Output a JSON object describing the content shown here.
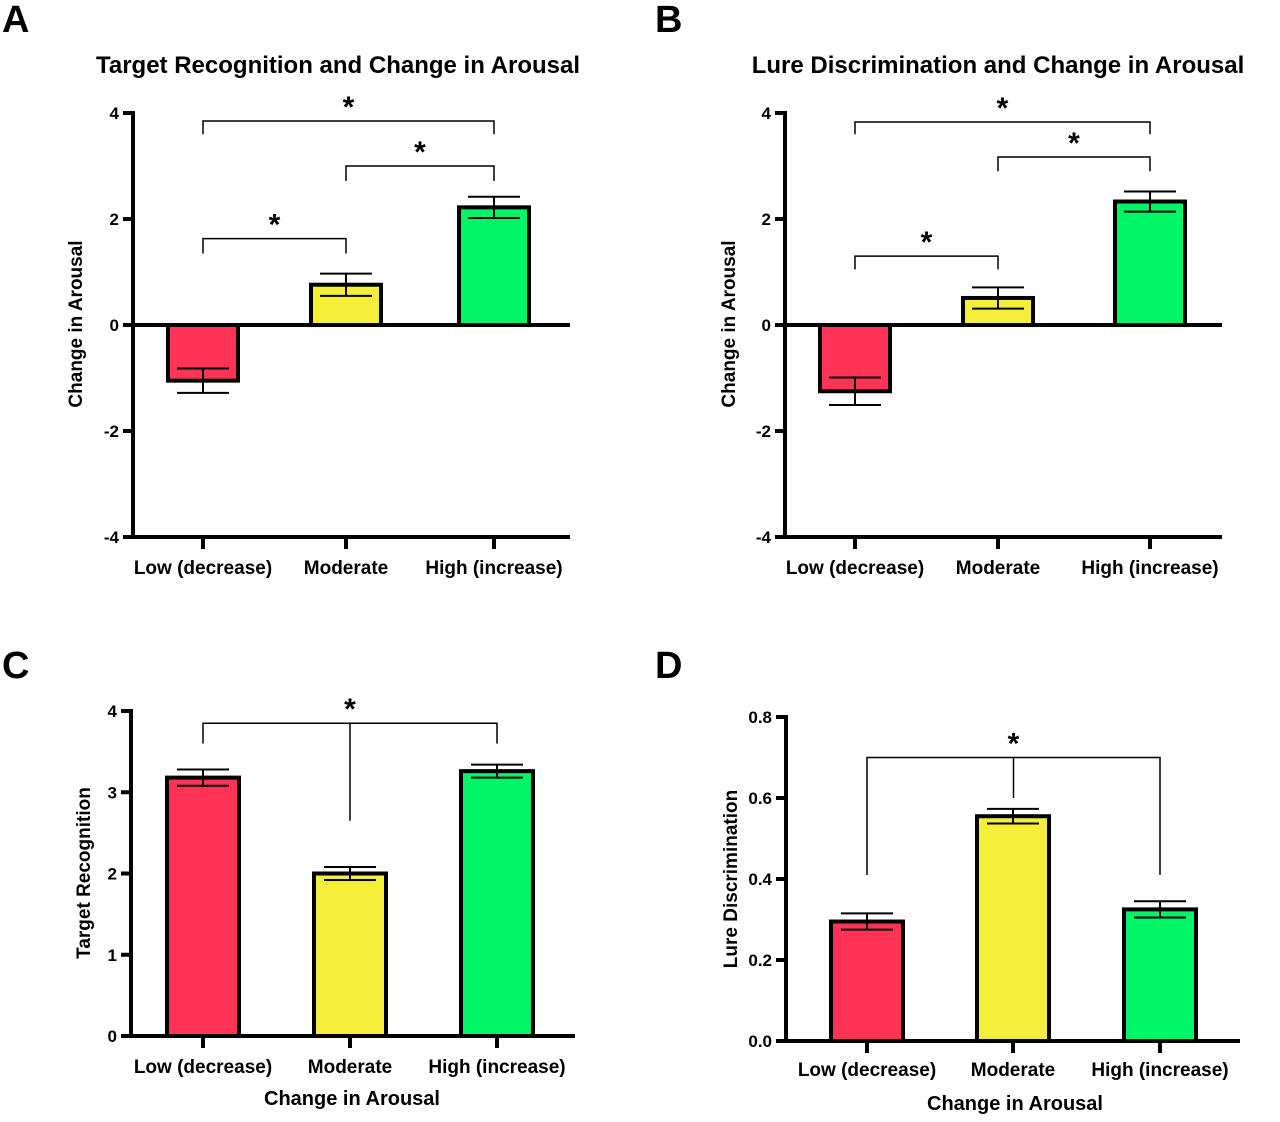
{
  "chart_data": [
    {
      "panel": "A",
      "type": "bar",
      "title": "Target Recognition and Change in Arousal",
      "xlabel": "",
      "ylabel": "Change in Arousal",
      "ylim": [
        -4,
        4
      ],
      "yticks": [
        "-4",
        "-2",
        "0",
        "2",
        "4"
      ],
      "categories": [
        "Low (decrease)",
        "Moderate",
        "High (increase)"
      ],
      "values": [
        -1.05,
        0.76,
        2.22
      ],
      "errors": [
        0.23,
        0.21,
        0.2
      ],
      "colors": [
        "#ff3355",
        "#f5ef3c",
        "#00f566"
      ],
      "comparisons": [
        {
          "from": 0,
          "to": 2,
          "y": 3.85,
          "drop": 3.6,
          "label": "*"
        },
        {
          "from": 1,
          "to": 2,
          "y": 3.0,
          "drop": 2.72,
          "label": "*"
        },
        {
          "from": 0,
          "to": 1,
          "y": 1.63,
          "drop": 1.35,
          "label": "*"
        }
      ]
    },
    {
      "panel": "B",
      "type": "bar",
      "title": "Lure Discrimination and Change in Arousal",
      "xlabel": "",
      "ylabel": "Change in Arousal",
      "ylim": [
        -4,
        4
      ],
      "yticks": [
        "-4",
        "-2",
        "0",
        "2",
        "4"
      ],
      "categories": [
        "Low (decrease)",
        "Moderate",
        "High (increase)"
      ],
      "values": [
        -1.25,
        0.51,
        2.33
      ],
      "errors": [
        0.26,
        0.2,
        0.19
      ],
      "colors": [
        "#ff3355",
        "#f5ef3c",
        "#00f566"
      ],
      "comparisons": [
        {
          "from": 0,
          "to": 2,
          "y": 3.83,
          "drop": 3.6,
          "label": "*"
        },
        {
          "from": 1,
          "to": 2,
          "y": 3.17,
          "drop": 2.9,
          "label": "*"
        },
        {
          "from": 0,
          "to": 1,
          "y": 1.3,
          "drop": 1.05,
          "label": "*"
        }
      ]
    },
    {
      "panel": "C",
      "type": "bar",
      "title": "",
      "xlabel": "Change in Arousal",
      "ylabel": "Target Recognition",
      "ylim": [
        0,
        4
      ],
      "yticks": [
        "0",
        "1",
        "2",
        "3",
        "4"
      ],
      "categories": [
        "Low (decrease)",
        "Moderate",
        "High (increase)"
      ],
      "values": [
        3.18,
        2.0,
        3.26
      ],
      "errors": [
        0.1,
        0.08,
        0.08
      ],
      "colors": [
        "#ff3355",
        "#f5ef3c",
        "#00f566"
      ],
      "comparisons": [
        {
          "from": 0,
          "to": 2,
          "y": 3.85,
          "drop": 3.6,
          "stem": 2.65,
          "label": "*"
        }
      ]
    },
    {
      "panel": "D",
      "type": "bar",
      "title": "",
      "xlabel": "Change in Arousal",
      "ylabel": "Lure Discrimination",
      "ylim": [
        0,
        0.8
      ],
      "yticks": [
        "0.0",
        "0.2",
        "0.4",
        "0.6",
        "0.8"
      ],
      "categories": [
        "Low (decrease)",
        "Moderate",
        "High (increase)"
      ],
      "values": [
        0.295,
        0.555,
        0.325
      ],
      "errors": [
        0.02,
        0.018,
        0.02
      ],
      "colors": [
        "#ff3355",
        "#f5ef3c",
        "#00f566"
      ],
      "comparisons": [
        {
          "from": 0,
          "to": 2,
          "y": 0.7,
          "drop": 0.41,
          "stem": 0.6,
          "label": "*"
        }
      ]
    }
  ]
}
